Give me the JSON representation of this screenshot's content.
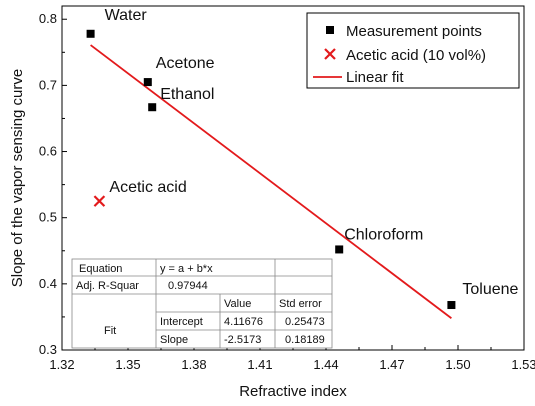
{
  "chart_data": {
    "type": "scatter",
    "xlabel": "Refractive index",
    "ylabel": "Slope of the vapor sensing curve",
    "xlim": [
      1.32,
      1.53
    ],
    "ylim": [
      0.3,
      0.82
    ],
    "xticks": [
      "1.32",
      "1.35",
      "1.38",
      "1.41",
      "1.44",
      "1.47",
      "1.50",
      "1.53"
    ],
    "yticks": [
      "0.3",
      "0.4",
      "0.5",
      "0.6",
      "0.7",
      "0.8"
    ],
    "xtick_values": [
      1.32,
      1.35,
      1.38,
      1.41,
      1.44,
      1.47,
      1.5,
      1.53
    ],
    "ytick_values": [
      0.3,
      0.4,
      0.5,
      0.6,
      0.7,
      0.8
    ],
    "grid": false,
    "legend_position": "top-right",
    "series": [
      {
        "name": "Measurement points",
        "marker": "square",
        "color": "#000000",
        "points": [
          {
            "x": 1.333,
            "y": 0.778,
            "label": "Water"
          },
          {
            "x": 1.359,
            "y": 0.705,
            "label": "Acetone"
          },
          {
            "x": 1.361,
            "y": 0.667,
            "label": "Ethanol"
          },
          {
            "x": 1.446,
            "y": 0.452,
            "label": "Chloroform"
          },
          {
            "x": 1.497,
            "y": 0.368,
            "label": "Toluene"
          }
        ]
      },
      {
        "name": "Acetic acid (10 vol%)",
        "marker": "x",
        "color": "#e31a1c",
        "points": [
          {
            "x": 1.337,
            "y": 0.525,
            "label": "Acetic acid"
          }
        ]
      },
      {
        "name": "Linear fit",
        "type": "line",
        "color": "#e31a1c",
        "x": [
          1.333,
          1.497
        ],
        "y": [
          0.761,
          0.348
        ]
      }
    ],
    "fit_table": {
      "equation_label": "Equation",
      "equation": "y = a + b*x",
      "adj_r_label": "Adj. R-Squar",
      "adj_r_value": "0.97944",
      "value_header": "Value",
      "stderr_header": "Std error",
      "fit_label": "Fit",
      "rows": [
        {
          "param": "Intercept",
          "value": "4.11676",
          "stderr": "0.25473"
        },
        {
          "param": "Slope",
          "value": "-2.5173",
          "stderr": "0.18189"
        }
      ]
    }
  }
}
